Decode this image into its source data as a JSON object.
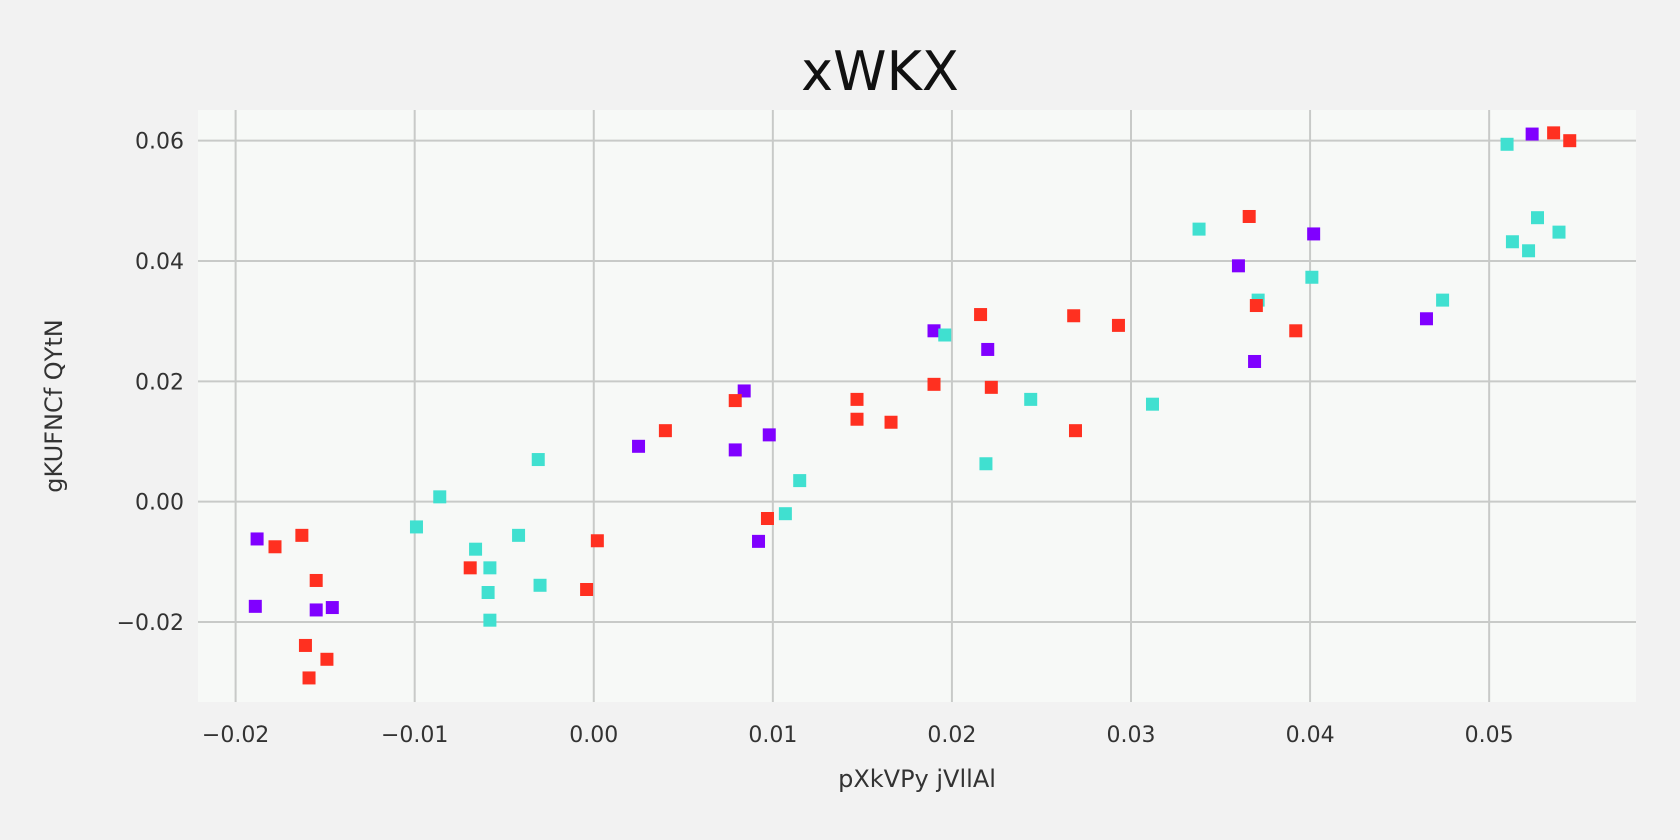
{
  "chart_data": {
    "type": "scatter",
    "title": "xWKX",
    "xlabel": "pXkVPy jVllAl",
    "ylabel": "gKUFNCf QYtN",
    "xlim": [
      -0.0221,
      0.0582
    ],
    "ylim": [
      -0.0333,
      0.0651
    ],
    "xticks": [
      -0.02,
      -0.01,
      0.0,
      0.01,
      0.02,
      0.03,
      0.04,
      0.05
    ],
    "xtick_labels": [
      "−0.02",
      "−0.01",
      "0.00",
      "0.01",
      "0.02",
      "0.03",
      "0.04",
      "0.05"
    ],
    "yticks": [
      -0.02,
      0.0,
      0.02,
      0.04,
      0.06
    ],
    "ytick_labels": [
      "−0.02",
      "0.00",
      "0.02",
      "0.04",
      "0.06"
    ],
    "grid": true,
    "series": [
      {
        "color": "#8000ff",
        "points": [
          [
            -0.0188,
            -0.0062
          ],
          [
            -0.0189,
            -0.0174
          ],
          [
            -0.0155,
            -0.018
          ],
          [
            -0.0146,
            -0.0176
          ],
          [
            0.0025,
            0.0092
          ],
          [
            0.0079,
            0.0086
          ],
          [
            0.0084,
            0.0184
          ],
          [
            0.0098,
            0.0111
          ],
          [
            0.0092,
            -0.0066
          ],
          [
            0.019,
            0.0284
          ],
          [
            0.022,
            0.0253
          ],
          [
            0.036,
            0.0392
          ],
          [
            0.0402,
            0.0445
          ],
          [
            0.0369,
            0.0233
          ],
          [
            0.0465,
            0.0304
          ],
          [
            0.0524,
            0.0611
          ]
        ]
      },
      {
        "color": "#40e0d0",
        "points": [
          [
            -0.0099,
            -0.0042
          ],
          [
            -0.0086,
            0.0008
          ],
          [
            -0.0066,
            -0.0079
          ],
          [
            -0.0058,
            -0.011
          ],
          [
            -0.0059,
            -0.0151
          ],
          [
            -0.0058,
            -0.0197
          ],
          [
            -0.0042,
            -0.0056
          ],
          [
            -0.0031,
            0.007
          ],
          [
            -0.003,
            -0.0139
          ],
          [
            0.0107,
            -0.002
          ],
          [
            0.0115,
            0.0035
          ],
          [
            0.0196,
            0.0277
          ],
          [
            0.0219,
            0.0063
          ],
          [
            0.0244,
            0.017
          ],
          [
            0.0312,
            0.0162
          ],
          [
            0.0338,
            0.0453
          ],
          [
            0.0371,
            0.0335
          ],
          [
            0.0401,
            0.0373
          ],
          [
            0.0474,
            0.0335
          ],
          [
            0.051,
            0.0594
          ],
          [
            0.0513,
            0.0432
          ],
          [
            0.0522,
            0.0417
          ],
          [
            0.0527,
            0.0472
          ],
          [
            0.0539,
            0.0448
          ]
        ]
      },
      {
        "color": "#ff3020",
        "points": [
          [
            -0.0178,
            -0.0075
          ],
          [
            -0.0163,
            -0.0056
          ],
          [
            -0.0155,
            -0.0131
          ],
          [
            -0.0161,
            -0.0239
          ],
          [
            -0.0159,
            -0.0293
          ],
          [
            -0.0149,
            -0.0262
          ],
          [
            -0.0069,
            -0.011
          ],
          [
            -0.0004,
            -0.0146
          ],
          [
            0.0002,
            -0.0065
          ],
          [
            0.004,
            0.0118
          ],
          [
            0.0079,
            0.0168
          ],
          [
            0.0097,
            -0.0028
          ],
          [
            0.0147,
            0.017
          ],
          [
            0.0147,
            0.0137
          ],
          [
            0.0166,
            0.0132
          ],
          [
            0.019,
            0.0195
          ],
          [
            0.0216,
            0.0311
          ],
          [
            0.0222,
            0.019
          ],
          [
            0.0268,
            0.0309
          ],
          [
            0.0269,
            0.0118
          ],
          [
            0.0293,
            0.0293
          ],
          [
            0.0366,
            0.0474
          ],
          [
            0.037,
            0.0326
          ],
          [
            0.0392,
            0.0284
          ],
          [
            0.0536,
            0.0613
          ],
          [
            0.0545,
            0.06
          ]
        ]
      }
    ]
  }
}
